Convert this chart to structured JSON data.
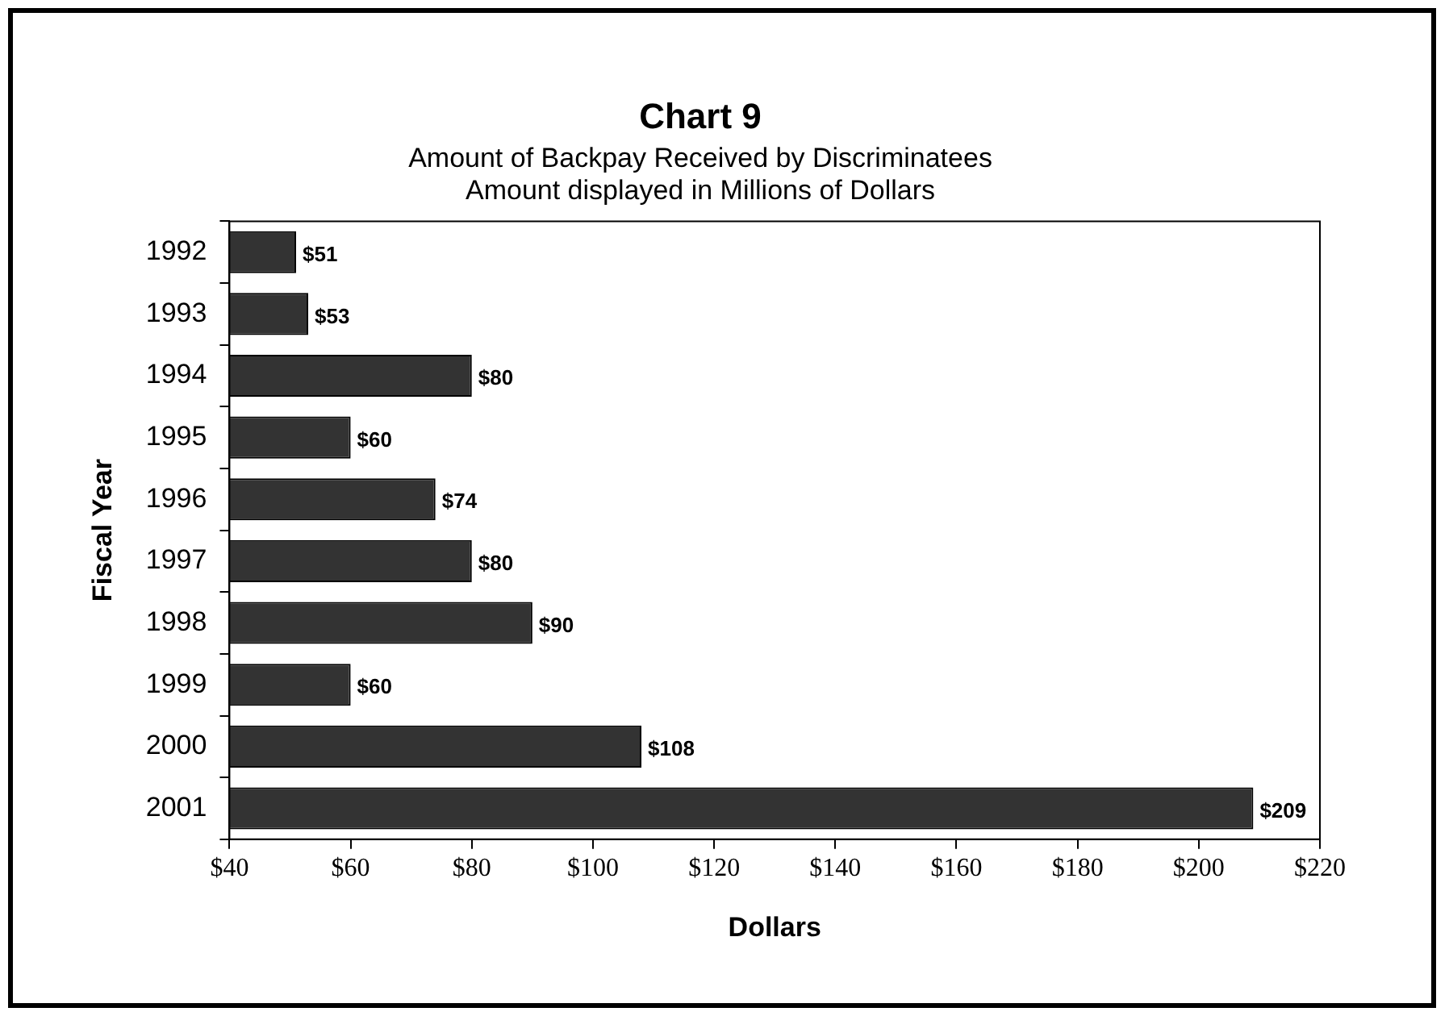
{
  "chart_data": {
    "type": "bar",
    "orientation": "horizontal",
    "title": "Chart 9",
    "subtitle": "Amount of Backpay Received by Discriminatees\nAmount displayed in Millions of Dollars",
    "xlabel": "Dollars",
    "ylabel": "Fiscal Year",
    "categories": [
      "1992",
      "1993",
      "1994",
      "1995",
      "1996",
      "1997",
      "1998",
      "1999",
      "2000",
      "2001"
    ],
    "values": [
      51,
      53,
      80,
      60,
      74,
      80,
      90,
      60,
      108,
      209
    ],
    "value_labels": [
      "$51",
      "$53",
      "$80",
      "$60",
      "$74",
      "$80",
      "$90",
      "$60",
      "$108",
      "$209"
    ],
    "color": "#333333",
    "xlim": [
      40,
      220
    ],
    "xticks": [
      {
        "value": 40,
        "label": "$40"
      },
      {
        "value": 60,
        "label": "$60"
      },
      {
        "value": 80,
        "label": "$80"
      },
      {
        "value": 100,
        "label": "$100"
      },
      {
        "value": 120,
        "label": "$120"
      },
      {
        "value": 140,
        "label": "$140"
      },
      {
        "value": 160,
        "label": "$160"
      },
      {
        "value": 180,
        "label": "$180"
      },
      {
        "value": 200,
        "label": "$200"
      },
      {
        "value": 220,
        "label": "$220"
      }
    ],
    "grid": false,
    "legend": false
  }
}
